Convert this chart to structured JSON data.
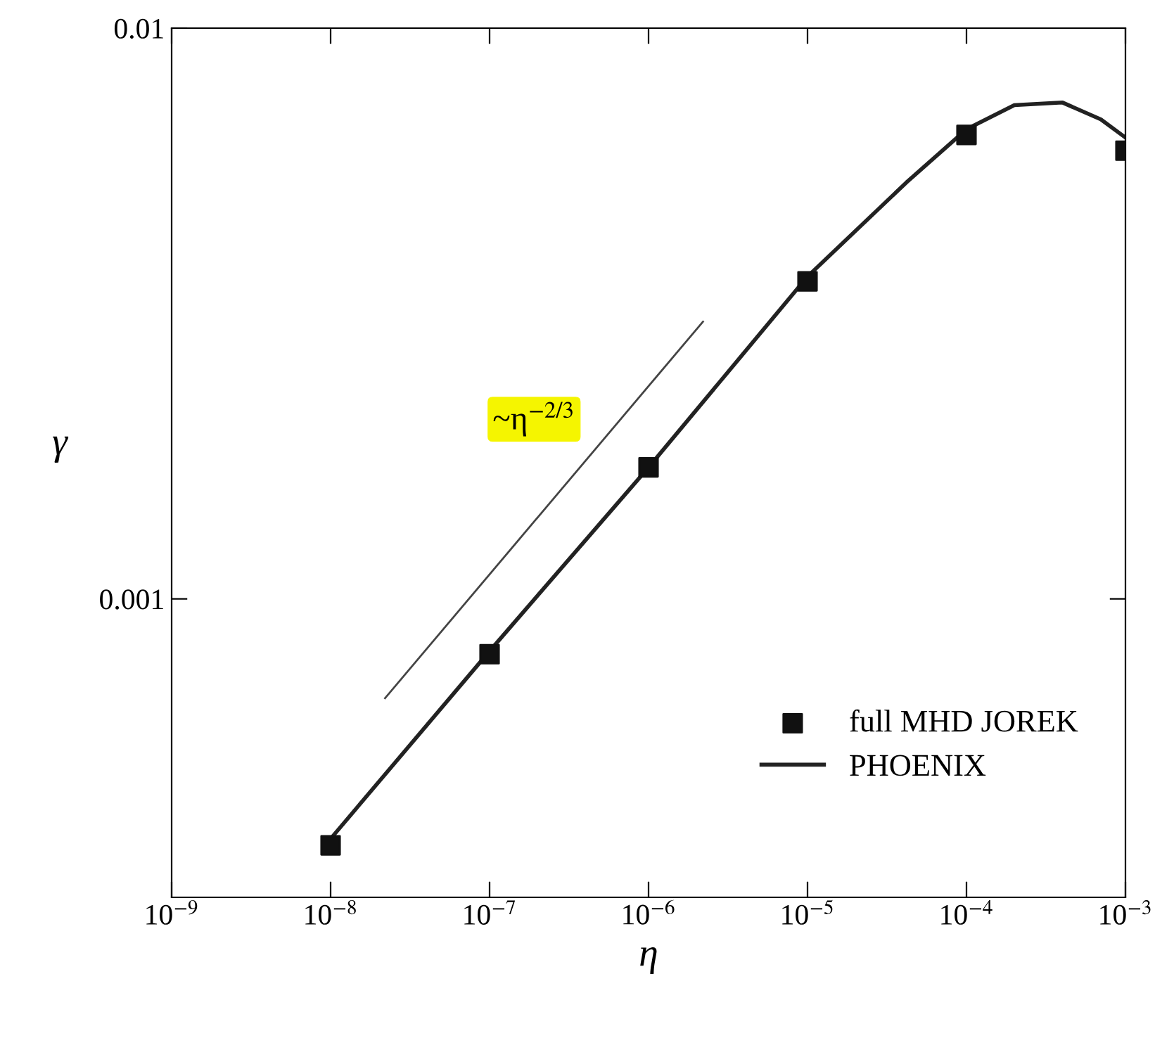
{
  "chart_data": {
    "type": "line",
    "xlabel": "η",
    "ylabel": "γ",
    "log": "xy",
    "xlim": [
      1e-09,
      0.001
    ],
    "ylim": [
      0.0003,
      0.01
    ],
    "xticks": [
      {
        "value": 1e-09,
        "label": "10$^{−9}$"
      },
      {
        "value": 1e-08,
        "label": "10$^{−8}$"
      },
      {
        "value": 1e-07,
        "label": "10$^{−7}$"
      },
      {
        "value": 1e-06,
        "label": "10$^{−6}$"
      },
      {
        "value": 1e-05,
        "label": "10$^{−5}$"
      },
      {
        "value": 0.0001,
        "label": "10$^{−4}$"
      },
      {
        "value": 0.001,
        "label": "10$^{−3}$"
      }
    ],
    "yticks": [
      0.001,
      0.01
    ],
    "grid": false,
    "legend": "bottom right",
    "series": [
      {
        "name": "full MHD JOREK",
        "type": "scatter",
        "marker": "square",
        "color": "#111111",
        "x": [
          1e-08,
          1e-07,
          1e-06,
          1e-05,
          0.0001,
          0.001
        ],
        "values": [
          0.00037,
          0.0008,
          0.0017,
          0.0036,
          0.0065,
          0.0061
        ]
      },
      {
        "name": "PHOENIX",
        "line_style": "solid",
        "color": "#222222",
        "x": [
          1e-08,
          1e-07,
          1e-06,
          1e-05,
          4.2e-05,
          0.0001,
          0.0002,
          0.0004,
          0.0007,
          0.001
        ],
        "values": [
          0.00038,
          0.00081,
          0.0017,
          0.00367,
          0.00537,
          0.00665,
          0.00733,
          0.00741,
          0.00692,
          0.00643
        ]
      },
      {
        "line_style": "solid",
        "color": "#444444",
        "x": [
          2.2e-08,
          2.2e-06
        ],
        "values": [
          0.00067,
          0.00306
        ]
      }
    ],
    "annotations": [
      "~η$^{−2/3}$"
    ]
  }
}
